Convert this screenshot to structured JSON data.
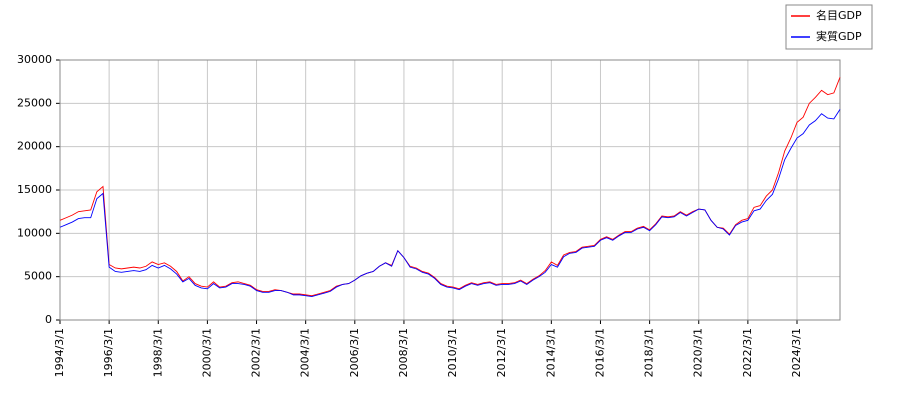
{
  "chart_data": {
    "type": "line",
    "x": [
      "1994/3/1",
      "1994/6/1",
      "1994/9/1",
      "1994/12/1",
      "1995/3/1",
      "1995/6/1",
      "1995/9/1",
      "1995/12/1",
      "1996/3/1",
      "1996/6/1",
      "1996/9/1",
      "1996/12/1",
      "1997/3/1",
      "1997/6/1",
      "1997/9/1",
      "1997/12/1",
      "1998/3/1",
      "1998/6/1",
      "1998/9/1",
      "1998/12/1",
      "1999/3/1",
      "1999/6/1",
      "1999/9/1",
      "1999/12/1",
      "2000/3/1",
      "2000/6/1",
      "2000/9/1",
      "2000/12/1",
      "2001/3/1",
      "2001/6/1",
      "2001/9/1",
      "2001/12/1",
      "2002/3/1",
      "2002/6/1",
      "2002/9/1",
      "2002/12/1",
      "2003/3/1",
      "2003/6/1",
      "2003/9/1",
      "2003/12/1",
      "2004/3/1",
      "2004/6/1",
      "2004/9/1",
      "2004/12/1",
      "2005/3/1",
      "2005/6/1",
      "2005/9/1",
      "2005/12/1",
      "2006/3/1",
      "2006/6/1",
      "2006/9/1",
      "2006/12/1",
      "2007/3/1",
      "2007/6/1",
      "2007/9/1",
      "2007/12/1",
      "2008/3/1",
      "2008/6/1",
      "2008/9/1",
      "2008/12/1",
      "2009/3/1",
      "2009/6/1",
      "2009/9/1",
      "2009/12/1",
      "2010/3/1",
      "2010/6/1",
      "2010/9/1",
      "2010/12/1",
      "2011/3/1",
      "2011/6/1",
      "2011/9/1",
      "2011/12/1",
      "2012/3/1",
      "2012/6/1",
      "2012/9/1",
      "2012/12/1",
      "2013/3/1",
      "2013/6/1",
      "2013/9/1",
      "2013/12/1",
      "2014/3/1",
      "2014/6/1",
      "2014/9/1",
      "2014/12/1",
      "2015/3/1",
      "2015/6/1",
      "2015/9/1",
      "2015/12/1",
      "2016/3/1",
      "2016/6/1",
      "2016/9/1",
      "2016/12/1",
      "2017/3/1",
      "2017/6/1",
      "2017/9/1",
      "2017/12/1",
      "2018/3/1",
      "2018/6/1",
      "2018/9/1",
      "2018/12/1",
      "2019/3/1",
      "2019/6/1",
      "2019/9/1",
      "2019/12/1",
      "2020/3/1",
      "2020/6/1",
      "2020/9/1",
      "2020/12/1",
      "2021/3/1",
      "2021/6/1",
      "2021/9/1",
      "2021/12/1",
      "2022/3/1",
      "2022/6/1",
      "2022/9/1",
      "2022/12/1",
      "2023/3/1",
      "2023/6/1",
      "2023/9/1",
      "2023/12/1",
      "2024/3/1",
      "2024/6/1",
      "2024/9/1",
      "2024/12/1",
      "2025/3/1",
      "2025/6/1",
      "2025/9/1",
      "2025/12/1"
    ],
    "series": [
      {
        "name": "名目GDP",
        "color": "#ff0000",
        "values": [
          11500,
          11800,
          12100,
          12500,
          12600,
          12700,
          14800,
          15400,
          6400,
          6000,
          5900,
          6000,
          6100,
          6000,
          6200,
          6700,
          6400,
          6600,
          6200,
          5600,
          4500,
          5000,
          4200,
          3900,
          3800,
          4400,
          3800,
          3900,
          4300,
          4400,
          4200,
          4000,
          3500,
          3300,
          3300,
          3500,
          3400,
          3200,
          3000,
          3000,
          2900,
          2800,
          3000,
          3200,
          3400,
          3900,
          4100,
          4200,
          4600,
          5100,
          5400,
          5600,
          6200,
          6600,
          6300,
          8000,
          7200,
          6200,
          6000,
          5600,
          5400,
          4900,
          4200,
          3900,
          3800,
          3600,
          4000,
          4300,
          4100,
          4300,
          4400,
          4100,
          4200,
          4200,
          4300,
          4600,
          4200,
          4700,
          5100,
          5700,
          6700,
          6300,
          7500,
          7800,
          7900,
          8400,
          8500,
          8600,
          9300,
          9600,
          9300,
          9800,
          10200,
          10200,
          10600,
          10800,
          10400,
          11100,
          12000,
          11900,
          12000,
          12500,
          12100,
          12500,
          12800,
          12700,
          11500,
          10700,
          10600,
          9900,
          11000,
          11500,
          11700,
          13000,
          13200,
          14300,
          15000,
          17000,
          19500,
          21000,
          22800,
          23400,
          25000,
          25700,
          26500,
          26000,
          26200,
          28000
        ]
      },
      {
        "name": "実質GDP",
        "color": "#0000ff",
        "values": [
          10700,
          11000,
          11300,
          11700,
          11800,
          11800,
          14000,
          14600,
          6100,
          5600,
          5500,
          5600,
          5700,
          5600,
          5800,
          6300,
          6000,
          6300,
          5900,
          5300,
          4400,
          4800,
          4000,
          3700,
          3600,
          4200,
          3700,
          3800,
          4200,
          4200,
          4100,
          3900,
          3400,
          3200,
          3200,
          3400,
          3400,
          3200,
          2900,
          2900,
          2800,
          2700,
          2900,
          3100,
          3300,
          3800,
          4100,
          4200,
          4600,
          5100,
          5400,
          5600,
          6200,
          6600,
          6200,
          8000,
          7200,
          6100,
          5900,
          5500,
          5300,
          4800,
          4100,
          3800,
          3700,
          3500,
          3900,
          4200,
          4000,
          4200,
          4300,
          4000,
          4100,
          4100,
          4200,
          4500,
          4100,
          4600,
          5000,
          5500,
          6400,
          6100,
          7300,
          7700,
          7800,
          8300,
          8400,
          8500,
          9200,
          9500,
          9200,
          9700,
          10100,
          10100,
          10500,
          10700,
          10300,
          11000,
          11900,
          11800,
          11900,
          12400,
          12000,
          12400,
          12800,
          12700,
          11500,
          10700,
          10500,
          9800,
          10900,
          11300,
          11500,
          12600,
          12800,
          13800,
          14500,
          16300,
          18500,
          19800,
          21000,
          21500,
          22500,
          23000,
          23800,
          23300,
          23200,
          24300
        ]
      }
    ],
    "xlim": [
      "1994/3/1",
      "2025/12/1"
    ],
    "xticks": [
      "1994/3/1",
      "1996/3/1",
      "1998/3/1",
      "2000/3/1",
      "2002/3/1",
      "2004/3/1",
      "2006/3/1",
      "2008/3/1",
      "2010/3/1",
      "2012/3/1",
      "2014/3/1",
      "2016/3/1",
      "2018/3/1",
      "2020/3/1",
      "2022/3/1",
      "2024/3/1"
    ],
    "ylim": [
      0,
      30000
    ],
    "yticks": [
      0,
      5000,
      10000,
      15000,
      20000,
      25000,
      30000
    ],
    "grid": true,
    "legend": "upper right"
  }
}
